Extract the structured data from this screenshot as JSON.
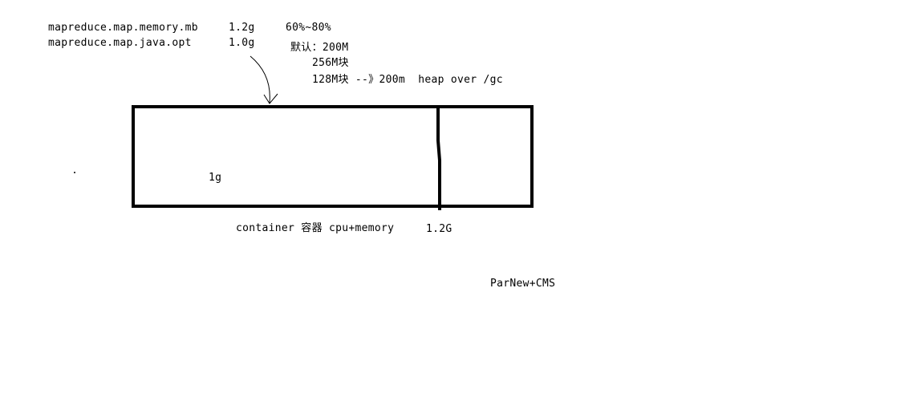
{
  "config": {
    "map_memory_key": "mapreduce.map.memory.mb",
    "map_memory_value": "1.2g",
    "ratio_range": "60%~80%",
    "java_opt_key": "mapreduce.map.java.opt",
    "java_opt_value": "1.0g"
  },
  "notes": {
    "default_line": "默认：200M",
    "block_256": "256M块",
    "block_128": "128M块 --》200m  heap over /gc"
  },
  "container": {
    "heap_label": "1g",
    "caption": "container 容器 cpu+memory",
    "total_label": "1.2G"
  },
  "gc": {
    "label": "ParNew+CMS"
  }
}
